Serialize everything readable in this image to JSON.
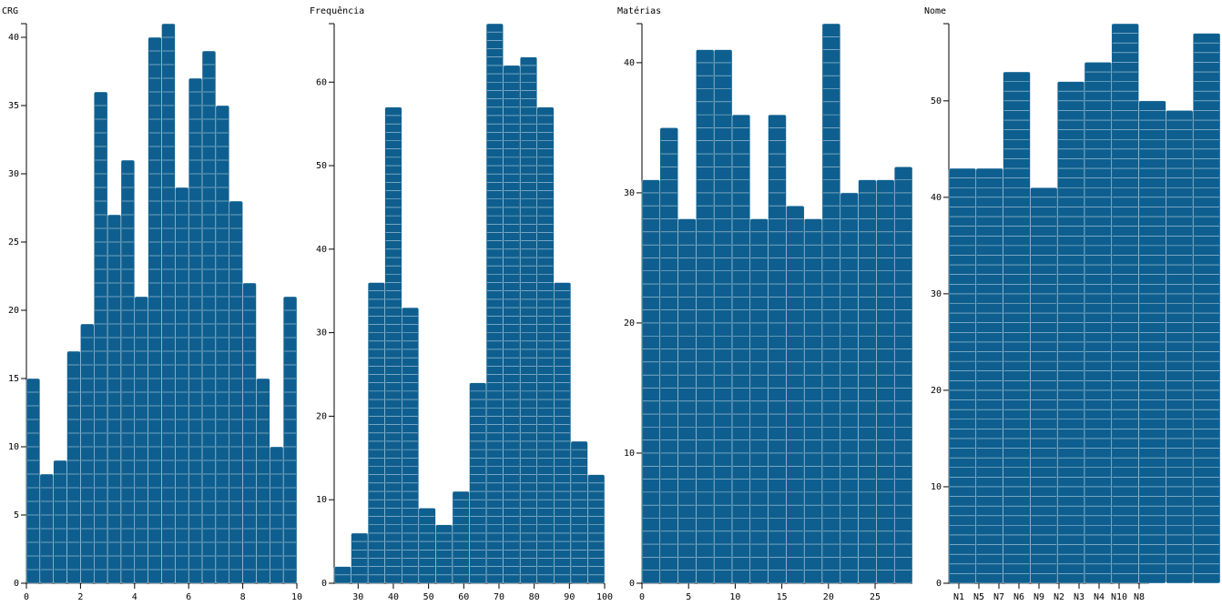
{
  "chart_data": [
    {
      "type": "histogram",
      "title": "CRG",
      "color": "#0e5f8f",
      "bins": [
        0,
        0.5,
        1,
        1.5,
        2,
        2.5,
        3,
        3.5,
        4,
        4.5,
        5,
        5.5,
        6,
        6.5,
        7,
        7.5,
        8,
        8.5,
        9,
        9.5,
        10
      ],
      "values": [
        15,
        8,
        9,
        17,
        19,
        36,
        27,
        31,
        21,
        40,
        41,
        29,
        37,
        39,
        35,
        28,
        22,
        15,
        10,
        21
      ],
      "xlim": [
        0,
        10
      ],
      "xticks": [
        0,
        2,
        4,
        6,
        8,
        10
      ],
      "ylim": [
        0,
        41
      ],
      "yticks": [
        0,
        5,
        10,
        15,
        20,
        25,
        30,
        35,
        40
      ]
    },
    {
      "type": "histogram",
      "title": "Frequência",
      "color": "#0e5f8f",
      "bins": [
        23.2,
        28,
        32.8,
        37.6,
        42.4,
        47.2,
        52,
        56.8,
        61.6,
        66.4,
        71.2,
        76,
        80.8,
        85.6,
        90.4,
        95.2,
        100
      ],
      "values": [
        2,
        6,
        36,
        57,
        33,
        9,
        7,
        11,
        24,
        67,
        62,
        63,
        57,
        36,
        17,
        13
      ],
      "xlim": [
        23.2,
        100
      ],
      "xticks": [
        30,
        40,
        50,
        60,
        70,
        80,
        90,
        100
      ],
      "ylim": [
        0,
        67
      ],
      "yticks": [
        0,
        10,
        20,
        30,
        40,
        50,
        60
      ]
    },
    {
      "type": "histogram",
      "title": "Matérias",
      "color": "#0e5f8f",
      "bins": [
        0,
        1.93,
        3.87,
        5.8,
        7.73,
        9.67,
        11.6,
        13.53,
        15.47,
        17.4,
        19.33,
        21.27,
        23.2,
        25.13,
        27.07,
        29
      ],
      "values": [
        31,
        35,
        28,
        41,
        41,
        36,
        28,
        36,
        29,
        28,
        43,
        30,
        31,
        31,
        32
      ],
      "xlim": [
        0,
        29
      ],
      "xticks": [
        0,
        5,
        10,
        15,
        20,
        25
      ],
      "ylim": [
        0,
        43
      ],
      "yticks": [
        0,
        10,
        20,
        30,
        40
      ]
    },
    {
      "type": "bar",
      "title": "Nome",
      "color": "#0e5f8f",
      "categories": [
        "N1",
        "N5",
        "N7",
        "N6",
        "N9",
        "N2",
        "N3",
        "N4",
        "N10",
        "N8"
      ],
      "values": [
        43,
        43,
        53,
        41,
        52,
        54,
        58,
        50,
        49,
        57
      ],
      "ylim": [
        0,
        58
      ],
      "yticks": [
        0,
        10,
        20,
        30,
        40,
        50
      ]
    }
  ]
}
